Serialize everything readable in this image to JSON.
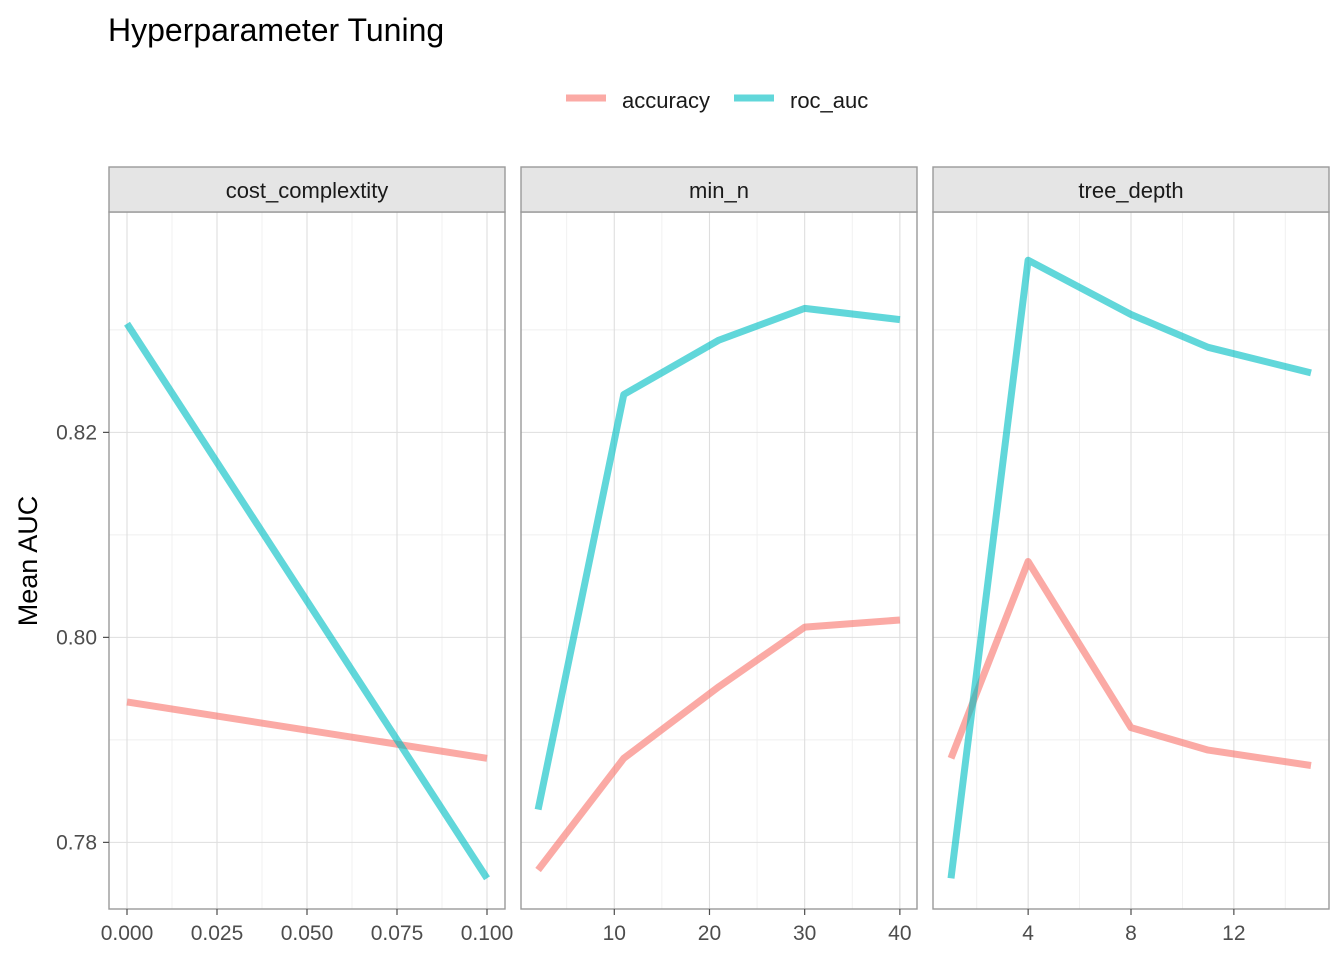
{
  "chart_data": {
    "type": "line",
    "title": "Hyperparameter Tuning",
    "xlabel": "",
    "ylabel": "Mean AUC",
    "ylim": [
      0.7735,
      0.8415
    ],
    "y_ticks": [
      0.78,
      0.8,
      0.82
    ],
    "y_tick_labels": [
      "0.78",
      "0.80",
      "0.82"
    ],
    "grid": true,
    "legend_position": "top",
    "series_meta": [
      {
        "name": "accuracy",
        "color": "#F8766D"
      },
      {
        "name": "roc_auc",
        "color": "#00BFC4"
      }
    ],
    "facets": [
      {
        "label": "cost_complextity",
        "xlim": [
          -0.005,
          0.105
        ],
        "x_ticks": [
          0.0,
          0.025,
          0.05,
          0.075,
          0.1
        ],
        "x_tick_labels": [
          "0.000",
          "0.025",
          "0.050",
          "0.075",
          "0.100"
        ],
        "series": [
          {
            "name": "accuracy",
            "x": [
              0.0,
              0.1
            ],
            "values": [
              0.7937,
              0.7882
            ]
          },
          {
            "name": "roc_auc",
            "x": [
              0.0,
              0.1
            ],
            "values": [
              0.8306,
              0.7765
            ]
          }
        ]
      },
      {
        "label": "min_n",
        "xlim": [
          0.2,
          41.8
        ],
        "x_ticks": [
          10,
          20,
          30,
          40
        ],
        "x_tick_labels": [
          "10",
          "20",
          "30",
          "40"
        ],
        "series": [
          {
            "name": "accuracy",
            "x": [
              2,
              11,
              21,
              30,
              40
            ],
            "values": [
              0.7773,
              0.7882,
              0.7952,
              0.801,
              0.8017
            ]
          },
          {
            "name": "roc_auc",
            "x": [
              2,
              11,
              21,
              30,
              40
            ],
            "values": [
              0.7832,
              0.8237,
              0.829,
              0.8321,
              0.831
            ]
          }
        ]
      },
      {
        "label": "tree_depth",
        "xlim": [
          0.3,
          15.7
        ],
        "x_ticks": [
          4,
          8,
          12
        ],
        "x_tick_labels": [
          "4",
          "8",
          "12"
        ],
        "series": [
          {
            "name": "accuracy",
            "x": [
              1,
              4,
              8,
              11,
              15
            ],
            "values": [
              0.7882,
              0.8074,
              0.7912,
              0.789,
              0.7875
            ]
          },
          {
            "name": "roc_auc",
            "x": [
              1,
              4,
              8,
              11,
              15
            ],
            "values": [
              0.7765,
              0.8368,
              0.8315,
              0.8283,
              0.8258
            ]
          }
        ]
      }
    ]
  }
}
